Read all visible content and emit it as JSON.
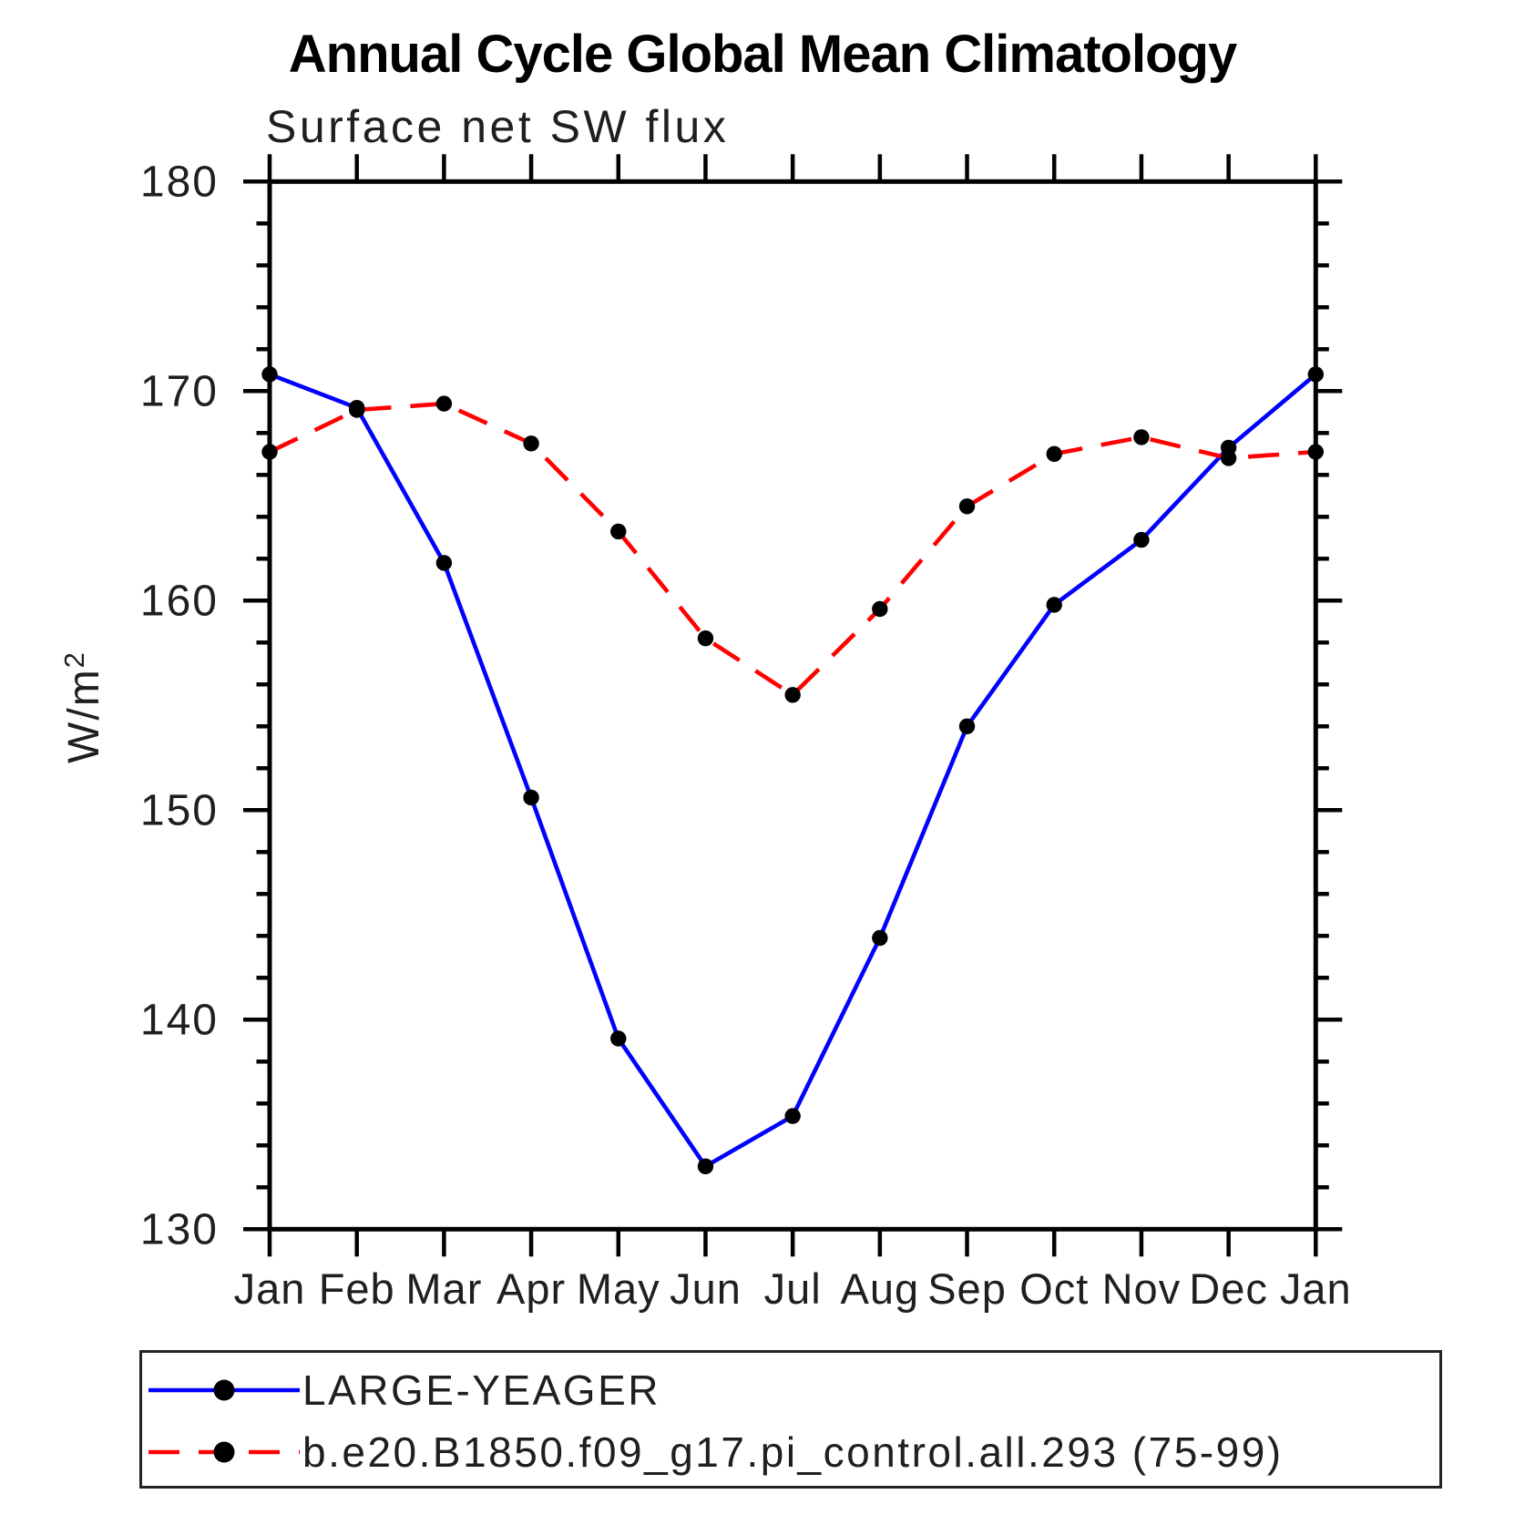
{
  "chart_data": {
    "type": "line",
    "title": "Annual Cycle Global Mean Climatology",
    "subtitle": "Surface net SW flux",
    "ylabel": "W/m²",
    "ylabel_parts": {
      "base": "W/m",
      "sup": "2"
    },
    "ylim": [
      130,
      180
    ],
    "y_major_ticks": [
      130,
      140,
      150,
      160,
      170,
      180
    ],
    "y_minor_step": 2,
    "grid": false,
    "legend_position": "bottom-left-box",
    "x": [
      "Jan",
      "Feb",
      "Mar",
      "Apr",
      "May",
      "Jun",
      "Jul",
      "Aug",
      "Sep",
      "Oct",
      "Nov",
      "Dec",
      "Jan"
    ],
    "series": [
      {
        "name": "LARGE-YEAGER",
        "color": "#0000ff",
        "style": "solid",
        "marker": "filled-circle",
        "marker_color": "#000000",
        "values": [
          170.8,
          169.2,
          161.8,
          150.6,
          139.1,
          133.0,
          135.4,
          143.9,
          154.0,
          159.8,
          162.9,
          167.3,
          170.8
        ]
      },
      {
        "name": "b.e20.B1850.f09_g17.pi_control.all.293 (75-99)",
        "color": "#ff0000",
        "style": "dashed",
        "marker": "filled-circle",
        "marker_color": "#000000",
        "values": [
          167.1,
          169.1,
          169.4,
          167.5,
          163.3,
          158.2,
          155.5,
          159.6,
          164.5,
          167.0,
          167.8,
          166.8,
          167.1
        ]
      }
    ],
    "frame_color": "#000000",
    "text_color": "#1f1f1f"
  }
}
